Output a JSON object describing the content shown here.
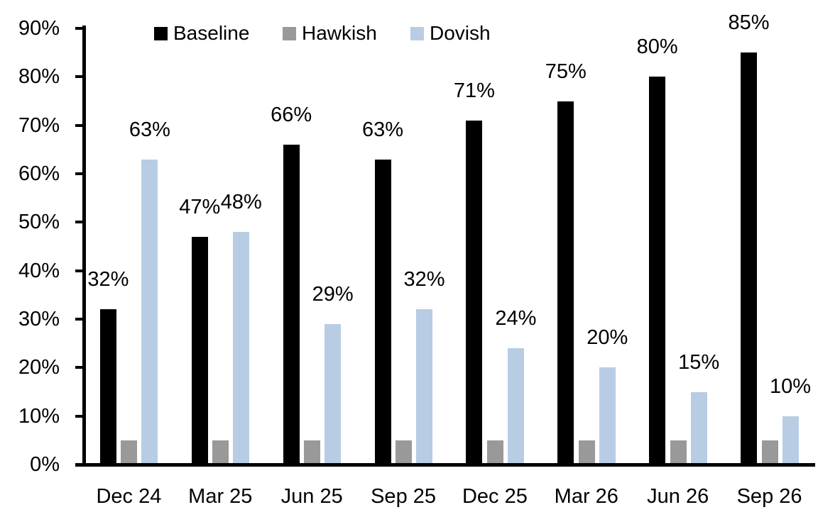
{
  "chart_data": {
    "type": "bar",
    "title": "",
    "xlabel": "",
    "ylabel": "",
    "categories": [
      "Dec 24",
      "Mar 25",
      "Jun 25",
      "Sep 25",
      "Dec 25",
      "Mar 26",
      "Jun 26",
      "Sep 26"
    ],
    "series": [
      {
        "name": "Baseline",
        "color": "#000000",
        "values": [
          32,
          47,
          66,
          63,
          71,
          75,
          80,
          85
        ],
        "labels": [
          "32%",
          "47%",
          "66%",
          "63%",
          "71%",
          "75%",
          "80%",
          "85%"
        ],
        "show_labels": true
      },
      {
        "name": "Hawkish",
        "color": "#999999",
        "values": [
          5,
          5,
          5,
          5,
          5,
          5,
          5,
          5
        ],
        "labels": [],
        "show_labels": false
      },
      {
        "name": "Dovish",
        "color": "#B8CCE4",
        "values": [
          63,
          48,
          29,
          32,
          24,
          20,
          15,
          10
        ],
        "labels": [
          "63%",
          "48%",
          "29%",
          "32%",
          "24%",
          "20%",
          "15%",
          "10%"
        ],
        "show_labels": true
      }
    ],
    "y_ticks": [
      "90%",
      "80%",
      "70%",
      "60%",
      "50%",
      "40%",
      "30%",
      "20%",
      "10%",
      "0%"
    ],
    "ylim": [
      0,
      90
    ],
    "y_tick_step": 10,
    "grid": false,
    "legend_position": "top",
    "colors": {
      "axis": "#000000",
      "background": "#ffffff",
      "text": "#000000"
    }
  }
}
